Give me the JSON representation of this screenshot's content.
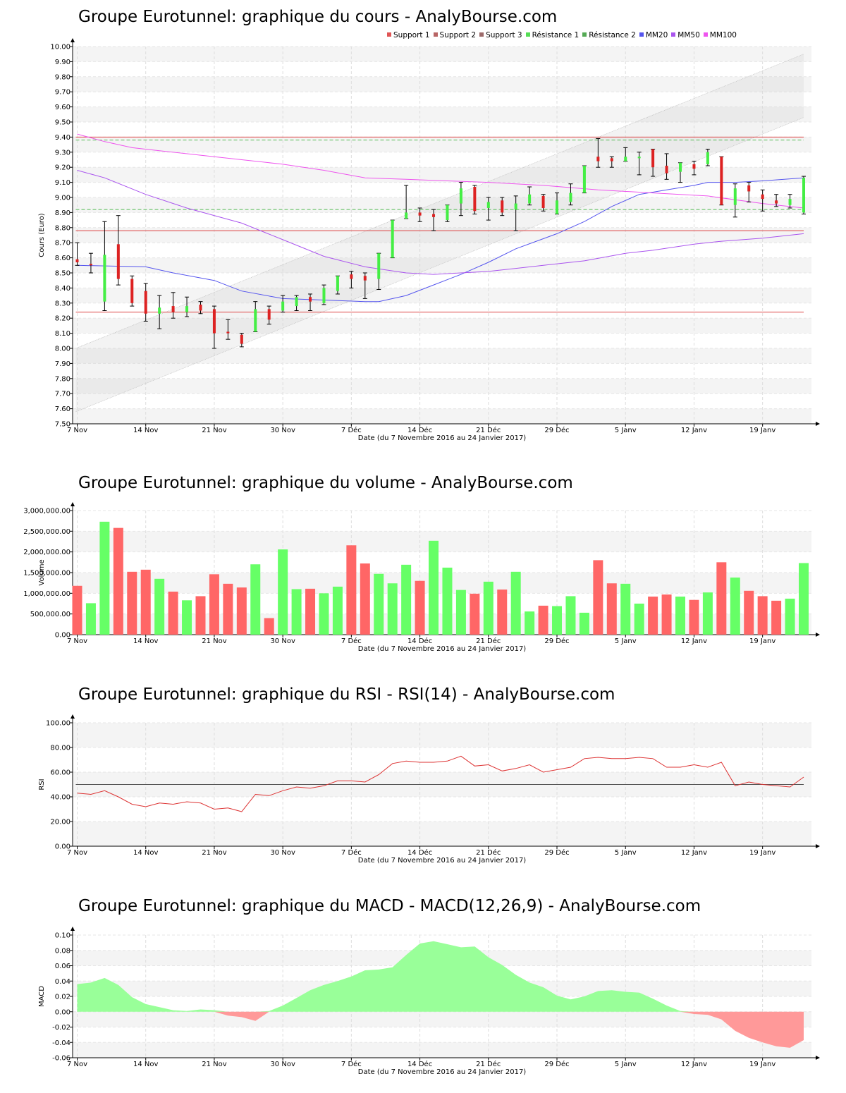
{
  "xaxis": {
    "labels": [
      "7 Nov",
      "14 Nov",
      "21 Nov",
      "30 Nov",
      "7 Déc",
      "14 Déc",
      "21 Déc",
      "29 Déc",
      "5 Janv",
      "12 Janv",
      "19 Janv"
    ],
    "label_index": [
      0,
      5,
      10,
      15,
      20,
      25,
      30,
      35,
      40,
      45,
      50
    ],
    "title": "Date (du 7 Novembre 2016 au 24 Janvier 2017)"
  },
  "panels": {
    "price": {
      "title": "Groupe Eurotunnel: graphique du cours - AnalyBourse.com",
      "ylabel": "Cours (Euro)"
    },
    "volume": {
      "title": "Groupe Eurotunnel: graphique du volume - AnalyBourse.com",
      "ylabel": "Volume"
    },
    "rsi": {
      "title": "Groupe Eurotunnel: graphique du RSI - RSI(14) - AnalyBourse.com",
      "ylabel": "RSI"
    },
    "macd": {
      "title": "Groupe Eurotunnel: graphique du MACD - MACD(12,26,9) - AnalyBourse.com",
      "ylabel": "MACD"
    }
  },
  "legend": [
    {
      "label": "Support 1",
      "color": "#e05555"
    },
    {
      "label": "Support 2",
      "color": "#b86565"
    },
    {
      "label": "Support 3",
      "color": "#9c6a6a"
    },
    {
      "label": "Résistance 1",
      "color": "#55dd55"
    },
    {
      "label": "Résistance 2",
      "color": "#55aa55"
    },
    {
      "label": "MM20",
      "color": "#5555ee"
    },
    {
      "label": "MM50",
      "color": "#aa55ee"
    },
    {
      "label": "MM100",
      "color": "#ee55ee"
    }
  ],
  "colors": {
    "up": "#44ee44",
    "down": "#dd2222",
    "vol_up": "#66ff66",
    "vol_down": "#ff6666",
    "macd_pos": "#99ff99",
    "macd_neg": "#ff9999"
  },
  "chart_data": [
    {
      "type": "candlestick",
      "title": "Groupe Eurotunnel: graphique du cours - AnalyBourse.com",
      "ylabel": "Cours (Euro)",
      "xlabel": "Date (du 7 Novembre 2016 au 24 Janvier 2017)",
      "ylim": [
        7.5,
        10.0
      ],
      "yticks": [
        "7.50",
        "7.60",
        "7.70",
        "7.80",
        "7.90",
        "8.00",
        "8.10",
        "8.20",
        "8.30",
        "8.40",
        "8.50",
        "8.60",
        "8.70",
        "8.80",
        "8.90",
        "9.00",
        "9.10",
        "9.20",
        "9.30",
        "9.40",
        "9.50",
        "9.60",
        "9.70",
        "9.80",
        "9.90",
        "10.00"
      ],
      "ohlc": [
        [
          8.59,
          8.7,
          8.55,
          8.57
        ],
        [
          8.56,
          8.63,
          8.5,
          8.55
        ],
        [
          8.31,
          8.84,
          8.25,
          8.62
        ],
        [
          8.69,
          8.88,
          8.42,
          8.46
        ],
        [
          8.46,
          8.48,
          8.28,
          8.3
        ],
        [
          8.38,
          8.43,
          8.18,
          8.23
        ],
        [
          8.23,
          8.35,
          8.13,
          8.27
        ],
        [
          8.28,
          8.37,
          8.2,
          8.24
        ],
        [
          8.24,
          8.34,
          8.21,
          8.28
        ],
        [
          8.29,
          8.31,
          8.23,
          8.25
        ],
        [
          8.26,
          8.28,
          8.0,
          8.1
        ],
        [
          8.11,
          8.19,
          8.06,
          8.1
        ],
        [
          8.09,
          8.1,
          8.01,
          8.03
        ],
        [
          8.11,
          8.31,
          8.11,
          8.26
        ],
        [
          8.26,
          8.28,
          8.16,
          8.19
        ],
        [
          8.25,
          8.35,
          8.24,
          8.31
        ],
        [
          8.28,
          8.35,
          8.25,
          8.34
        ],
        [
          8.34,
          8.36,
          8.25,
          8.31
        ],
        [
          8.3,
          8.42,
          8.29,
          8.4
        ],
        [
          8.38,
          8.48,
          8.36,
          8.48
        ],
        [
          8.49,
          8.51,
          8.4,
          8.46
        ],
        [
          8.48,
          8.5,
          8.33,
          8.45
        ],
        [
          8.46,
          8.63,
          8.39,
          8.63
        ],
        [
          8.6,
          8.85,
          8.6,
          8.85
        ],
        [
          8.86,
          9.08,
          8.86,
          8.9
        ],
        [
          8.9,
          8.93,
          8.84,
          8.88
        ],
        [
          8.89,
          8.92,
          8.78,
          8.87
        ],
        [
          8.85,
          8.95,
          8.84,
          8.95
        ],
        [
          8.96,
          9.1,
          8.88,
          9.06
        ],
        [
          9.07,
          9.08,
          8.89,
          8.91
        ],
        [
          8.93,
          9.0,
          8.85,
          8.97
        ],
        [
          8.98,
          9.0,
          8.88,
          8.9
        ],
        [
          8.92,
          9.01,
          8.78,
          8.96
        ],
        [
          8.96,
          9.07,
          8.95,
          9.02
        ],
        [
          9.01,
          9.02,
          8.91,
          8.93
        ],
        [
          8.89,
          9.03,
          8.89,
          8.98
        ],
        [
          8.97,
          9.09,
          8.95,
          9.03
        ],
        [
          9.03,
          9.21,
          9.03,
          9.21
        ],
        [
          9.27,
          9.39,
          9.2,
          9.24
        ],
        [
          9.26,
          9.27,
          9.2,
          9.24
        ],
        [
          9.24,
          9.33,
          9.24,
          9.27
        ],
        [
          9.26,
          9.3,
          9.15,
          9.27
        ],
        [
          9.32,
          9.32,
          9.14,
          9.2
        ],
        [
          9.21,
          9.29,
          9.12,
          9.16
        ],
        [
          9.17,
          9.23,
          9.1,
          9.23
        ],
        [
          9.22,
          9.24,
          9.15,
          9.19
        ],
        [
          9.22,
          9.32,
          9.21,
          9.3
        ],
        [
          9.27,
          9.27,
          8.95,
          8.95
        ],
        [
          8.95,
          9.09,
          8.87,
          9.06
        ],
        [
          9.08,
          9.1,
          8.97,
          9.04
        ],
        [
          9.02,
          9.05,
          8.91,
          8.99
        ],
        [
          8.98,
          9.02,
          8.94,
          8.96
        ],
        [
          8.95,
          9.02,
          8.93,
          8.99
        ],
        [
          8.9,
          9.14,
          8.89,
          9.13
        ]
      ],
      "support": [
        8.24,
        8.78,
        9.4
      ],
      "resistance": [
        8.92,
        9.38
      ],
      "channel": {
        "upper": [
          8.0,
          9.95
        ],
        "lower": [
          7.58,
          9.53
        ]
      },
      "series": [
        {
          "name": "MM20",
          "points": [
            [
              0,
              8.55
            ],
            [
              5,
              8.54
            ],
            [
              7,
              8.5
            ],
            [
              10,
              8.45
            ],
            [
              12,
              8.38
            ],
            [
              15,
              8.33
            ],
            [
              18,
              8.32
            ],
            [
              21,
              8.31
            ],
            [
              22,
              8.31
            ],
            [
              24,
              8.35
            ],
            [
              26,
              8.42
            ],
            [
              28,
              8.49
            ],
            [
              30,
              8.57
            ],
            [
              32,
              8.66
            ],
            [
              35,
              8.76
            ],
            [
              37,
              8.84
            ],
            [
              39,
              8.94
            ],
            [
              41,
              9.02
            ],
            [
              43,
              9.05
            ],
            [
              45,
              9.08
            ],
            [
              46,
              9.1
            ],
            [
              48,
              9.1
            ],
            [
              50,
              9.11
            ],
            [
              53,
              9.13
            ]
          ]
        },
        {
          "name": "MM50",
          "points": [
            [
              0,
              9.18
            ],
            [
              2,
              9.13
            ],
            [
              5,
              9.02
            ],
            [
              8,
              8.93
            ],
            [
              12,
              8.83
            ],
            [
              15,
              8.72
            ],
            [
              18,
              8.61
            ],
            [
              21,
              8.54
            ],
            [
              24,
              8.5
            ],
            [
              26,
              8.49
            ],
            [
              28,
              8.5
            ],
            [
              30,
              8.51
            ],
            [
              32,
              8.53
            ],
            [
              34,
              8.55
            ],
            [
              37,
              8.58
            ],
            [
              40,
              8.63
            ],
            [
              42,
              8.65
            ],
            [
              45,
              8.69
            ],
            [
              47,
              8.71
            ],
            [
              50,
              8.73
            ],
            [
              53,
              8.76
            ]
          ]
        },
        {
          "name": "MM100",
          "points": [
            [
              0,
              9.42
            ],
            [
              2,
              9.37
            ],
            [
              4,
              9.33
            ],
            [
              6,
              9.31
            ],
            [
              9,
              9.28
            ],
            [
              12,
              9.25
            ],
            [
              15,
              9.22
            ],
            [
              18,
              9.18
            ],
            [
              21,
              9.13
            ],
            [
              24,
              9.12
            ],
            [
              27,
              9.11
            ],
            [
              30,
              9.1
            ],
            [
              34,
              9.08
            ],
            [
              38,
              9.05
            ],
            [
              42,
              9.03
            ],
            [
              46,
              9.01
            ],
            [
              50,
              8.96
            ],
            [
              53,
              8.93
            ]
          ]
        }
      ]
    },
    {
      "type": "bar",
      "title": "Groupe Eurotunnel: graphique du volume - AnalyBourse.com",
      "ylabel": "Volume",
      "ylim": [
        0,
        3000000
      ],
      "yticks": [
        "0.00",
        "500,000.00",
        "1,000,000.00",
        "1,500,000.00",
        "2,000,000.00",
        "2,500,000.00",
        "3,000,000.00"
      ],
      "values": [
        1180000,
        760000,
        2730000,
        2580000,
        1520000,
        1570000,
        1350000,
        1040000,
        830000,
        930000,
        1460000,
        1230000,
        1140000,
        1700000,
        400000,
        2060000,
        1100000,
        1110000,
        1000000,
        1160000,
        2160000,
        1720000,
        1470000,
        1240000,
        1690000,
        1300000,
        2270000,
        1620000,
        1080000,
        990000,
        1280000,
        1090000,
        1520000,
        560000,
        700000,
        690000,
        930000,
        530000,
        1800000,
        1240000,
        1230000,
        750000,
        920000,
        970000,
        920000,
        840000,
        1020000,
        1750000,
        1380000,
        1060000,
        930000,
        820000,
        870000,
        1730000
      ],
      "up": [
        false,
        true,
        true,
        false,
        false,
        false,
        true,
        false,
        true,
        false,
        false,
        false,
        false,
        true,
        false,
        true,
        true,
        false,
        true,
        true,
        false,
        false,
        true,
        true,
        true,
        false,
        true,
        true,
        true,
        false,
        true,
        false,
        true,
        true,
        false,
        true,
        true,
        true,
        false,
        false,
        true,
        true,
        false,
        false,
        true,
        false,
        true,
        false,
        true,
        false,
        false,
        false,
        true,
        true
      ]
    },
    {
      "type": "line",
      "title": "Groupe Eurotunnel: graphique du RSI - RSI(14) - AnalyBourse.com",
      "ylabel": "RSI",
      "ylim": [
        0,
        100
      ],
      "yticks": [
        "0.00",
        "20.00",
        "40.00",
        "60.00",
        "80.00",
        "100.00"
      ],
      "reference": 50,
      "values": [
        43,
        42,
        45,
        40,
        34,
        32,
        35,
        34,
        36,
        35,
        30,
        31,
        28,
        42,
        41,
        45,
        48,
        47,
        49,
        53,
        53,
        52,
        58,
        67,
        69,
        68,
        68,
        69,
        73,
        65,
        66,
        61,
        63,
        66,
        60,
        62,
        64,
        71,
        72,
        71,
        71,
        72,
        71,
        64,
        64,
        66,
        64,
        68,
        49,
        52,
        50,
        49,
        48,
        56
      ]
    },
    {
      "type": "area",
      "title": "Groupe Eurotunnel: graphique du MACD - MACD(12,26,9) - AnalyBourse.com",
      "ylabel": "MACD",
      "ylim": [
        -0.06,
        0.1
      ],
      "yticks": [
        "-0.06",
        "-0.04",
        "-0.02",
        "0.00",
        "0.02",
        "0.04",
        "0.06",
        "0.08",
        "0.10"
      ],
      "values": [
        0.036,
        0.038,
        0.044,
        0.035,
        0.019,
        0.01,
        0.006,
        0.002,
        0.001,
        0.003,
        0.002,
        -0.005,
        -0.007,
        -0.012,
        0.001,
        0.008,
        0.018,
        0.028,
        0.035,
        0.04,
        0.046,
        0.054,
        0.055,
        0.058,
        0.074,
        0.089,
        0.092,
        0.088,
        0.084,
        0.085,
        0.071,
        0.061,
        0.048,
        0.038,
        0.032,
        0.021,
        0.016,
        0.02,
        0.027,
        0.028,
        0.026,
        0.025,
        0.017,
        0.008,
        0.001,
        -0.003,
        -0.004,
        -0.01,
        -0.025,
        -0.034,
        -0.04,
        -0.045,
        -0.047,
        -0.037
      ]
    }
  ]
}
